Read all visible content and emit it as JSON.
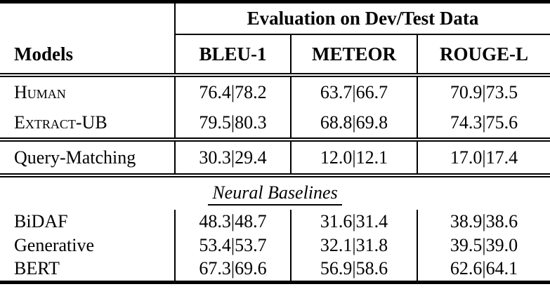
{
  "table": {
    "eval_header": "Evaluation on Dev/Test Data",
    "models_header": "Models",
    "columns": [
      "BLEU-1",
      "METEOR",
      "ROUGE-L"
    ],
    "sections": {
      "oracle": {
        "rows": [
          {
            "label": "Human",
            "values": [
              "76.4|78.2",
              "63.7|66.7",
              "70.9|73.5"
            ]
          },
          {
            "label": "Extract-UB",
            "values": [
              "79.5|80.3",
              "68.8|69.8",
              "74.3|75.6"
            ]
          }
        ]
      },
      "query": {
        "rows": [
          {
            "label": "Query-Matching",
            "values": [
              "30.3|29.4",
              "12.0|12.1",
              "17.0|17.4"
            ]
          }
        ]
      },
      "neural": {
        "heading": "Neural Baselines",
        "rows": [
          {
            "label": "BiDAF",
            "values": [
              "48.3|48.7",
              "31.6|31.4",
              "38.9|38.6"
            ]
          },
          {
            "label": "Generative",
            "values": [
              "53.4|53.7",
              "32.1|31.8",
              "39.5|39.0"
            ]
          },
          {
            "label": "BERT",
            "values": [
              "67.3|69.6",
              "56.9|58.6",
              "62.6|64.1"
            ]
          }
        ]
      }
    }
  },
  "colors": {
    "text": "#000000",
    "background": "#ffffff",
    "rule": "#000000"
  },
  "chart_data": {
    "type": "table",
    "title": "Evaluation on Dev/Test Data",
    "columns": [
      "Models",
      "BLEU-1",
      "METEOR",
      "ROUGE-L"
    ],
    "value_format": "dev|test",
    "rows": [
      {
        "model": "Human",
        "group": "oracle",
        "bleu1_dev": 76.4,
        "bleu1_test": 78.2,
        "meteor_dev": 63.7,
        "meteor_test": 66.7,
        "rougeL_dev": 70.9,
        "rougeL_test": 73.5
      },
      {
        "model": "Extract-UB",
        "group": "oracle",
        "bleu1_dev": 79.5,
        "bleu1_test": 80.3,
        "meteor_dev": 68.8,
        "meteor_test": 69.8,
        "rougeL_dev": 74.3,
        "rougeL_test": 75.6
      },
      {
        "model": "Query-Matching",
        "group": "baseline",
        "bleu1_dev": 30.3,
        "bleu1_test": 29.4,
        "meteor_dev": 12.0,
        "meteor_test": 12.1,
        "rougeL_dev": 17.0,
        "rougeL_test": 17.4
      },
      {
        "model": "BiDAF",
        "group": "Neural Baselines",
        "bleu1_dev": 48.3,
        "bleu1_test": 48.7,
        "meteor_dev": 31.6,
        "meteor_test": 31.4,
        "rougeL_dev": 38.9,
        "rougeL_test": 38.6
      },
      {
        "model": "Generative",
        "group": "Neural Baselines",
        "bleu1_dev": 53.4,
        "bleu1_test": 53.7,
        "meteor_dev": 32.1,
        "meteor_test": 31.8,
        "rougeL_dev": 39.5,
        "rougeL_test": 39.0
      },
      {
        "model": "BERT",
        "group": "Neural Baselines",
        "bleu1_dev": 67.3,
        "bleu1_test": 69.6,
        "meteor_dev": 56.9,
        "meteor_test": 58.6,
        "rougeL_dev": 62.6,
        "rougeL_test": 64.1
      }
    ]
  }
}
